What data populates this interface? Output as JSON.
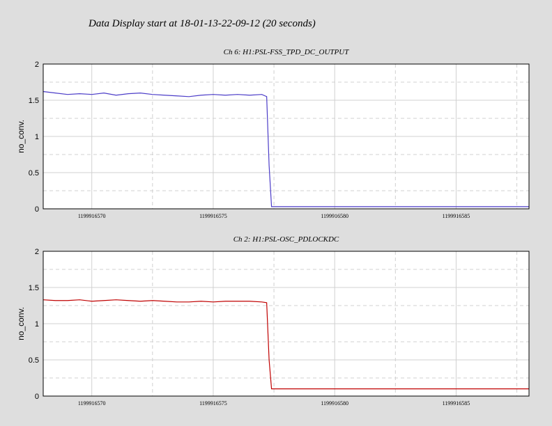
{
  "title": "Data Display start at 18-01-13-22-09-12 (20 seconds)",
  "chart_data": [
    {
      "type": "line",
      "title": "Ch 6: H1:PSL-FSS_TPD_DC_OUTPUT",
      "y_label": "no_conv.",
      "xlim": [
        1199916568,
        1199916588
      ],
      "xticks": [
        1199916570,
        1199916575,
        1199916580,
        1199916585
      ],
      "minor_xticks": [
        1199916572.5,
        1199916577.5,
        1199916582.5,
        1199916587.5
      ],
      "ylim": [
        0,
        2
      ],
      "yticks": [
        0,
        0.5,
        1,
        1.5,
        2
      ],
      "minor_yticks": [
        0.25,
        0.75,
        1.25,
        1.75
      ],
      "grid": true,
      "x": [
        1199916568,
        1199916568.5,
        1199916569,
        1199916569.5,
        1199916570,
        1199916570.5,
        1199916571,
        1199916571.5,
        1199916572,
        1199916572.5,
        1199916573,
        1199916573.5,
        1199916574,
        1199916574.5,
        1199916575,
        1199916575.5,
        1199916576,
        1199916576.5,
        1199916577,
        1199916577.2,
        1199916577.3,
        1199916577.4,
        1199916578,
        1199916579,
        1199916580,
        1199916581,
        1199916582,
        1199916583,
        1199916584,
        1199916585,
        1199916586,
        1199916587,
        1199916588
      ],
      "series": [
        {
          "color": "#4b3cc8",
          "values": [
            1.62,
            1.6,
            1.58,
            1.59,
            1.58,
            1.6,
            1.57,
            1.59,
            1.6,
            1.58,
            1.57,
            1.56,
            1.55,
            1.57,
            1.58,
            1.57,
            1.58,
            1.57,
            1.58,
            1.55,
            0.6,
            0.03,
            0.03,
            0.03,
            0.03,
            0.03,
            0.03,
            0.03,
            0.03,
            0.03,
            0.03,
            0.03,
            0.03
          ]
        }
      ]
    },
    {
      "type": "line",
      "title": "Ch 2: H1:PSL-OSC_PDLOCKDC",
      "y_label": "no_conv.",
      "xlim": [
        1199916568,
        1199916588
      ],
      "xticks": [
        1199916570,
        1199916575,
        1199916580,
        1199916585
      ],
      "minor_xticks": [
        1199916572.5,
        1199916577.5,
        1199916582.5,
        1199916587.5
      ],
      "ylim": [
        0,
        2
      ],
      "yticks": [
        0,
        0.5,
        1,
        1.5,
        2
      ],
      "minor_yticks": [
        0.25,
        0.75,
        1.25,
        1.75
      ],
      "grid": true,
      "x": [
        1199916568,
        1199916568.5,
        1199916569,
        1199916569.5,
        1199916570,
        1199916570.5,
        1199916571,
        1199916571.5,
        1199916572,
        1199916572.5,
        1199916573,
        1199916573.5,
        1199916574,
        1199916574.5,
        1199916575,
        1199916575.5,
        1199916576,
        1199916576.5,
        1199916577,
        1199916577.2,
        1199916577.3,
        1199916577.4,
        1199916578,
        1199916579,
        1199916580,
        1199916581,
        1199916582,
        1199916583,
        1199916584,
        1199916585,
        1199916586,
        1199916587,
        1199916588
      ],
      "series": [
        {
          "color": "#c00000",
          "values": [
            1.33,
            1.32,
            1.32,
            1.33,
            1.31,
            1.32,
            1.33,
            1.32,
            1.31,
            1.32,
            1.31,
            1.3,
            1.3,
            1.31,
            1.3,
            1.31,
            1.31,
            1.31,
            1.3,
            1.29,
            0.5,
            0.1,
            0.1,
            0.1,
            0.1,
            0.1,
            0.1,
            0.1,
            0.1,
            0.1,
            0.1,
            0.1,
            0.1
          ]
        }
      ]
    }
  ]
}
